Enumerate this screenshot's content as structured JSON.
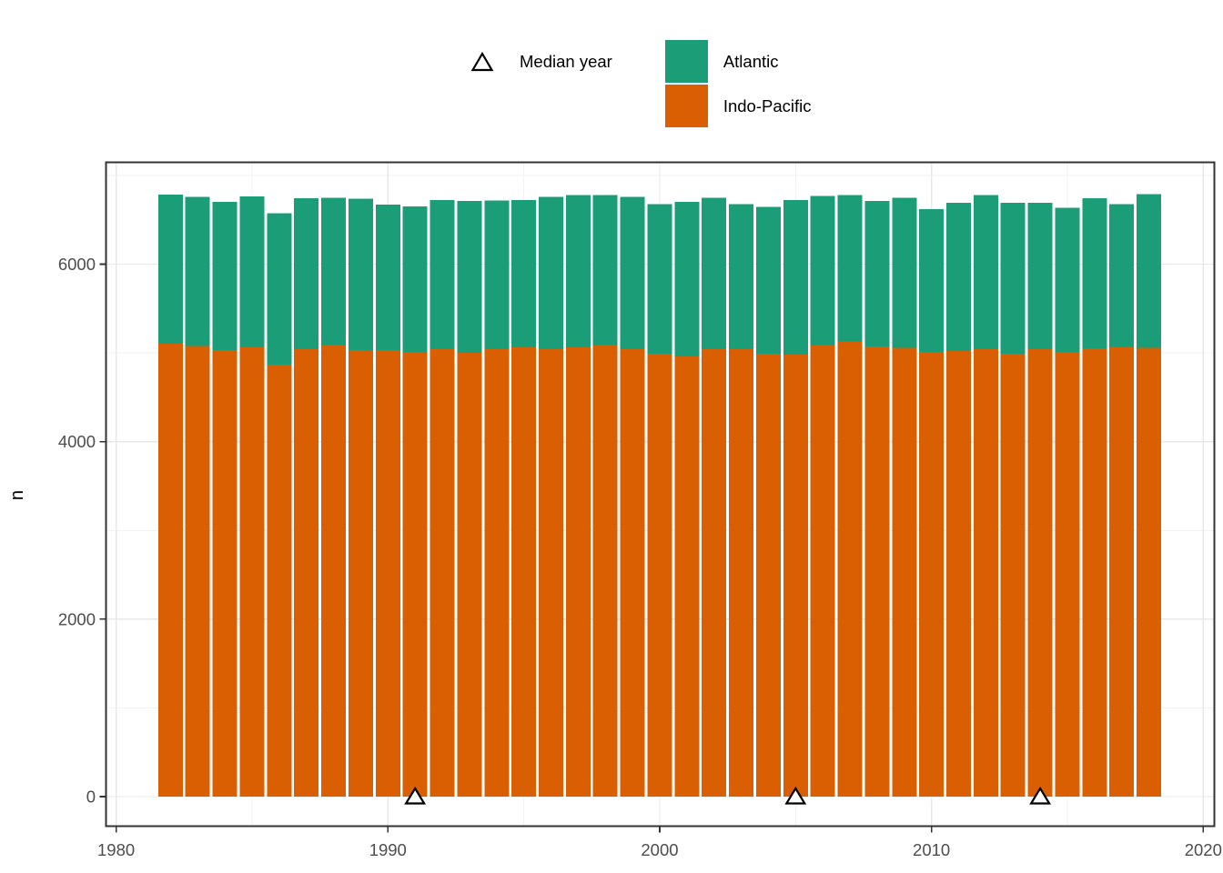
{
  "chart_data": {
    "type": "bar",
    "stacked": true,
    "title": "",
    "xlabel": "",
    "ylabel": "n",
    "legend_position": "top",
    "grid": true,
    "xlim": [
      1979.6,
      2020.4
    ],
    "ylim": [
      0,
      7150
    ],
    "x_ticks": [
      1980,
      1990,
      2000,
      2010,
      2020
    ],
    "x_minor_ticks": [
      1985,
      1995,
      2005,
      2015
    ],
    "y_ticks": [
      0,
      2000,
      4000,
      6000
    ],
    "y_minor_ticks": [
      1000,
      3000,
      5000,
      7000
    ],
    "x": [
      1982,
      1983,
      1984,
      1985,
      1986,
      1987,
      1988,
      1989,
      1990,
      1991,
      1992,
      1993,
      1994,
      1995,
      1996,
      1997,
      1998,
      1999,
      2000,
      2001,
      2002,
      2003,
      2004,
      2005,
      2006,
      2007,
      2008,
      2009,
      2010,
      2011,
      2012,
      2013,
      2014,
      2015,
      2016,
      2017,
      2018
    ],
    "series": [
      {
        "name": "Atlantic",
        "color": "#1b9e77",
        "values": [
          1675,
          1680,
          1670,
          1695,
          1705,
          1705,
          1660,
          1710,
          1640,
          1640,
          1680,
          1710,
          1675,
          1660,
          1720,
          1720,
          1690,
          1720,
          1685,
          1740,
          1710,
          1635,
          1655,
          1740,
          1680,
          1650,
          1635,
          1695,
          1610,
          1670,
          1740,
          1700,
          1650,
          1625,
          1695,
          1605,
          1735
        ]
      },
      {
        "name": "Indo-Pacific",
        "color": "#d95f02",
        "values": [
          5110,
          5080,
          5030,
          5070,
          4870,
          5040,
          5090,
          5030,
          5030,
          5010,
          5040,
          5000,
          5040,
          5060,
          5040,
          5060,
          5090,
          5040,
          4990,
          4960,
          5040,
          5040,
          4990,
          4980,
          5090,
          5130,
          5075,
          5055,
          5010,
          5020,
          5040,
          4990,
          5040,
          5010,
          5050,
          5070,
          5055
        ]
      }
    ],
    "median_year_markers": {
      "label": "Median year",
      "years": [
        1991,
        2005,
        2014
      ],
      "marker": "open-triangle-up"
    },
    "colors": {
      "atlantic": "#1b9e77",
      "indo_pacific": "#d95f02",
      "grid_major": "#e8e8e8",
      "grid_minor": "#f2f2f2",
      "panel_border": "#333333",
      "tick_text": "#4d4d4d"
    }
  }
}
